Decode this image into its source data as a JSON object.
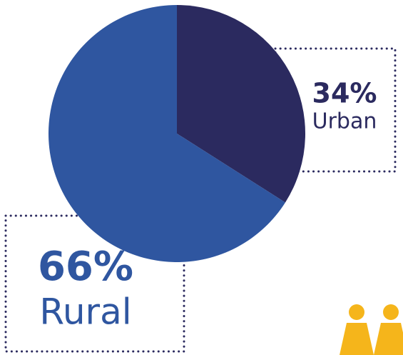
{
  "chart_data": {
    "type": "pie",
    "categories": [
      "Urban",
      "Rural"
    ],
    "values": [
      34,
      66
    ],
    "value_labels": [
      "34%",
      "66%"
    ],
    "colors": [
      "#2b2a5f",
      "#2f56a0"
    ]
  }
}
